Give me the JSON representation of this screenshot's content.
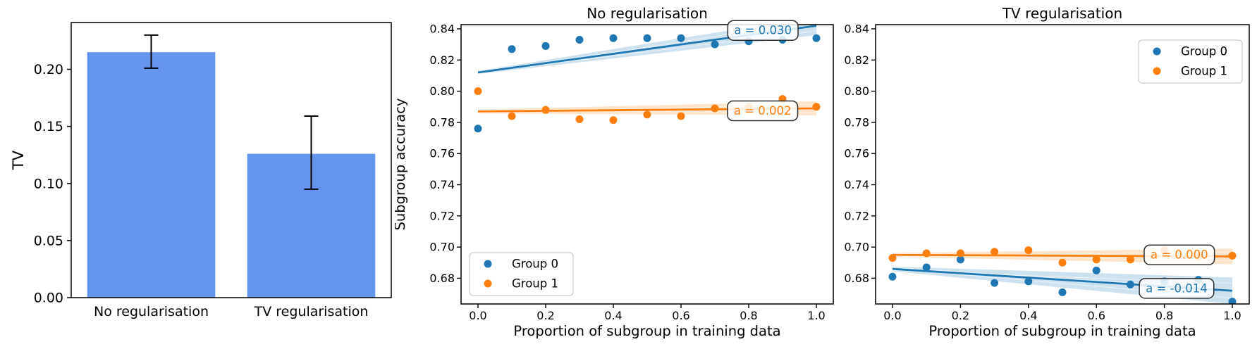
{
  "figure": {
    "background": "#ffffff",
    "text_color": "#000000",
    "spine_color": "#000000"
  },
  "colors": {
    "bar_fill": "#6495ed",
    "group0": "#1f77b4",
    "group1": "#ff7f0e",
    "error_bar": "#000000",
    "annotation_border": "#2b2b2b",
    "legend_border": "#cccccc"
  },
  "chart_data": [
    {
      "type": "bar",
      "title": "",
      "xlabel": "",
      "ylabel": "TV",
      "categories": [
        "No regularisation",
        "TV regularisation"
      ],
      "values": [
        0.215,
        0.126
      ],
      "error_low": [
        0.201,
        0.095
      ],
      "error_high": [
        0.23,
        0.159
      ],
      "bar_color": "#6495ed",
      "yticks": [
        "0.00",
        "0.05",
        "0.10",
        "0.15",
        "0.20"
      ],
      "ylim": [
        0,
        0.241
      ],
      "xlim": [
        -0.5,
        1.5
      ],
      "bar_width": 0.8,
      "grid": false
    },
    {
      "type": "scatter",
      "title": "No regularisation",
      "xlabel": "Proportion of subgroup in training data",
      "ylabel": "Subgroup accuracy",
      "xticks": [
        "0.0",
        "0.2",
        "0.4",
        "0.6",
        "0.8",
        "1.0"
      ],
      "yticks": [
        "0.68",
        "0.70",
        "0.72",
        "0.74",
        "0.76",
        "0.78",
        "0.80",
        "0.82",
        "0.84"
      ],
      "xlim": [
        -0.05,
        1.05
      ],
      "ylim": [
        0.6635,
        0.8427
      ],
      "grid": false,
      "x": [
        0.0,
        0.1,
        0.2,
        0.3,
        0.4,
        0.5,
        0.6,
        0.7,
        0.8,
        0.9,
        1.0
      ],
      "legend": {
        "location": "lower-left",
        "entries": [
          {
            "label": "Group 0",
            "color": "#1f77b4"
          },
          {
            "label": "Group 1",
            "color": "#ff7f0e"
          }
        ]
      },
      "series": [
        {
          "name": "Group 0",
          "color": "#1f77b4",
          "y": [
            0.776,
            0.827,
            0.829,
            0.833,
            0.834,
            0.834,
            0.834,
            0.83,
            0.832,
            0.833,
            0.834
          ],
          "trend": {
            "x_start": 0.0,
            "y_start": 0.812,
            "x_end": 1.0,
            "y_end": 0.842,
            "slope": 0.03
          },
          "band": {
            "half_width_start": 0.001,
            "half_width_end": 0.006
          },
          "annotation": {
            "text": "a = 0.030",
            "x": 0.842,
            "y": 0.839
          }
        },
        {
          "name": "Group 1",
          "color": "#ff7f0e",
          "y": [
            0.8,
            0.784,
            0.788,
            0.782,
            0.7815,
            0.785,
            0.784,
            0.789,
            0.79,
            0.795,
            0.79
          ],
          "trend": {
            "x_start": 0.0,
            "y_start": 0.787,
            "x_end": 1.0,
            "y_end": 0.789,
            "slope": 0.002
          },
          "band": {
            "half_width_start": 0.0012,
            "half_width_end": 0.0045
          },
          "annotation": {
            "text": "a = 0.002",
            "x": 0.841,
            "y": 0.7874
          }
        }
      ]
    },
    {
      "type": "scatter",
      "title": "TV regularisation",
      "xlabel": "Proportion of subgroup in training data",
      "ylabel": "",
      "xticks": [
        "0.0",
        "0.2",
        "0.4",
        "0.6",
        "0.8",
        "1.0"
      ],
      "yticks": [
        "0.68",
        "0.70",
        "0.72",
        "0.74",
        "0.76",
        "0.78",
        "0.80",
        "0.82",
        "0.84"
      ],
      "xlim": [
        -0.05,
        1.05
      ],
      "ylim": [
        0.6635,
        0.8427
      ],
      "grid": false,
      "x": [
        0.0,
        0.1,
        0.2,
        0.3,
        0.4,
        0.5,
        0.6,
        0.7,
        0.8,
        0.9,
        1.0
      ],
      "legend": {
        "location": "upper-right",
        "entries": [
          {
            "label": "Group 0",
            "color": "#1f77b4"
          },
          {
            "label": "Group 1",
            "color": "#ff7f0e"
          }
        ]
      },
      "series": [
        {
          "name": "Group 0",
          "color": "#1f77b4",
          "y": [
            0.681,
            0.687,
            0.692,
            0.677,
            0.678,
            0.671,
            0.685,
            0.676,
            0.678,
            0.679,
            0.665
          ],
          "trend": {
            "x_start": 0.0,
            "y_start": 0.686,
            "x_end": 1.0,
            "y_end": 0.672,
            "slope": -0.014
          },
          "band": {
            "half_width_start": 0.0015,
            "half_width_end": 0.0085
          },
          "annotation": {
            "text": "a = -0.014",
            "x": 0.836,
            "y": 0.6735
          }
        },
        {
          "name": "Group 1",
          "color": "#ff7f0e",
          "y": [
            0.693,
            0.696,
            0.696,
            0.697,
            0.698,
            0.69,
            0.692,
            0.692,
            0.698,
            0.694,
            0.6945
          ],
          "trend": {
            "x_start": 0.0,
            "y_start": 0.695,
            "x_end": 1.0,
            "y_end": 0.694,
            "slope": 0.0
          },
          "band": {
            "half_width_start": 0.0012,
            "half_width_end": 0.005
          },
          "annotation": {
            "text": "a = 0.000",
            "x": 0.844,
            "y": 0.695
          }
        }
      ]
    }
  ]
}
